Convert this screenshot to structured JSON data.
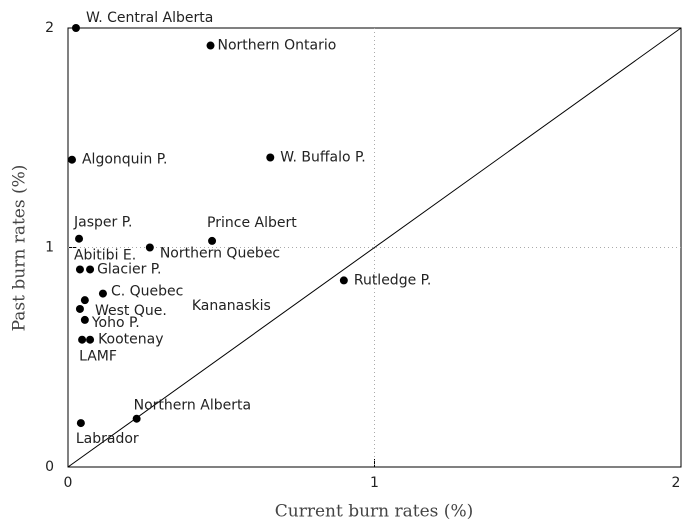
{
  "chart_data": {
    "type": "scatter",
    "xlabel": "Current burn rates (%)",
    "ylabel": "Past burn rates (%)",
    "series": [
      {
        "color": "#000000",
        "labels": [
          "W. Central Alberta",
          "Northern Ontario",
          "Algonquin P.",
          "W. Buffalo P.",
          "Jasper P.",
          "Prince Albert",
          "Northern Quebec",
          "Abitibi E.",
          "Glacier P.",
          "C. Quebec",
          "Kananaskis",
          "West Que.",
          "Yoho P.",
          "Kootenay",
          "LAMF",
          "Rutledge P.",
          "Northern Alberta",
          "Labrador"
        ],
        "x": [
          0.026,
          0.465,
          0.013,
          0.66,
          0.036,
          0.47,
          0.267,
          0.039,
          0.072,
          0.114,
          0.055,
          0.039,
          0.055,
          0.072,
          0.046,
          0.9,
          0.224,
          0.042
        ],
        "values": [
          2.0,
          1.92,
          1.4,
          1.41,
          1.04,
          1.03,
          1.0,
          0.9,
          0.9,
          0.79,
          0.76,
          0.72,
          0.67,
          0.58,
          0.58,
          0.85,
          0.22,
          0.2
        ]
      }
    ],
    "xlim": [
      0,
      2
    ],
    "ylim": [
      0,
      2
    ],
    "xticks": [
      0,
      1,
      2
    ],
    "yticks": [
      0,
      1,
      2
    ],
    "grid": true
  }
}
